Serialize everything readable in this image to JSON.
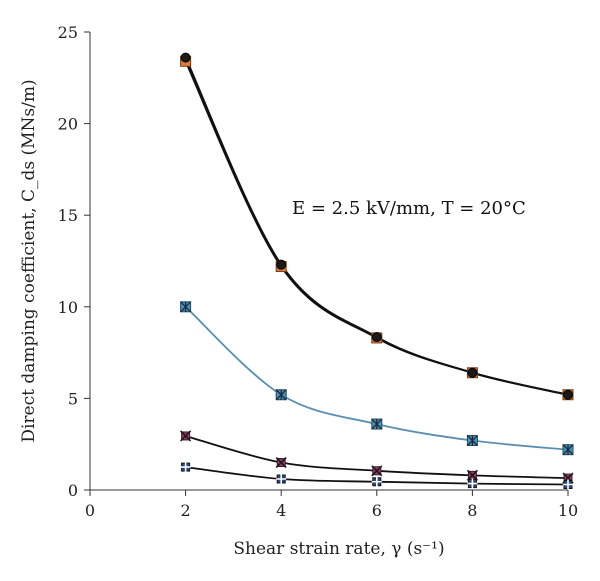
{
  "chart_data": {
    "type": "line",
    "title": "",
    "xlabel": "Shear strain rate, γ (s⁻¹)",
    "ylabel": "Direct damping coefficient, C_ds (MNs/m)",
    "xlim": [
      0,
      10
    ],
    "ylim": [
      0,
      25
    ],
    "xticks": [
      "0",
      "2",
      "4",
      "6",
      "8",
      "10"
    ],
    "yticks": [
      "0",
      "5",
      "10",
      "15",
      "20",
      "25"
    ],
    "grid": false,
    "annotation": "E = 2.5 kV/mm, T = 20°C",
    "x": [
      2,
      4,
      6,
      8,
      10
    ],
    "series": [
      {
        "values": [
          23.4,
          12.2,
          8.3,
          6.4,
          5.2
        ],
        "color": "#e07b39",
        "marker": "square",
        "line_color": "#111111"
      },
      {
        "values": [
          23.6,
          12.3,
          8.35,
          6.4,
          5.2
        ],
        "color": "#1a1a1a",
        "marker": "circle",
        "line_color": "#111111"
      },
      {
        "values": [
          10.0,
          5.2,
          3.6,
          2.7,
          2.2
        ],
        "color": "#4a90b8",
        "marker": "asterisk",
        "line_color": "#5b8fb0"
      },
      {
        "values": [
          2.95,
          1.5,
          1.05,
          0.8,
          0.65
        ],
        "color": "#9b3a6b",
        "marker": "x-square",
        "line_color": "#111111"
      },
      {
        "values": [
          1.25,
          0.6,
          0.45,
          0.35,
          0.3
        ],
        "color": "#2c4a7a",
        "marker": "plus-square",
        "line_color": "#111111"
      }
    ]
  }
}
